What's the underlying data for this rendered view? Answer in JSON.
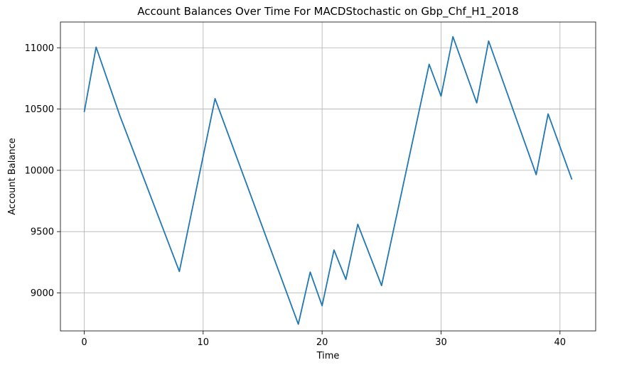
{
  "chart_data": {
    "type": "line",
    "title": "Account Balances Over Time For MACDStochastic on Gbp_Chf_H1_2018",
    "xlabel": "Time",
    "ylabel": "Account Balance",
    "xlim": [
      -2,
      43
    ],
    "ylim": [
      8690,
      11210
    ],
    "xticks": [
      0,
      10,
      20,
      30,
      40
    ],
    "yticks": [
      9000,
      9500,
      10000,
      10500,
      11000
    ],
    "grid": true,
    "legend": "none",
    "series": [
      {
        "color": "#1f77b4",
        "x": [
          0,
          1,
          3,
          8,
          11,
          18,
          19,
          20,
          21,
          22,
          23,
          25,
          29,
          30,
          31,
          33,
          34,
          38,
          39,
          41
        ],
        "y": [
          10475,
          11005,
          10445,
          9175,
          10585,
          8745,
          9170,
          8895,
          9350,
          9110,
          9560,
          9060,
          10865,
          10605,
          11090,
          10550,
          11055,
          9965,
          10460,
          9925
        ]
      }
    ]
  }
}
